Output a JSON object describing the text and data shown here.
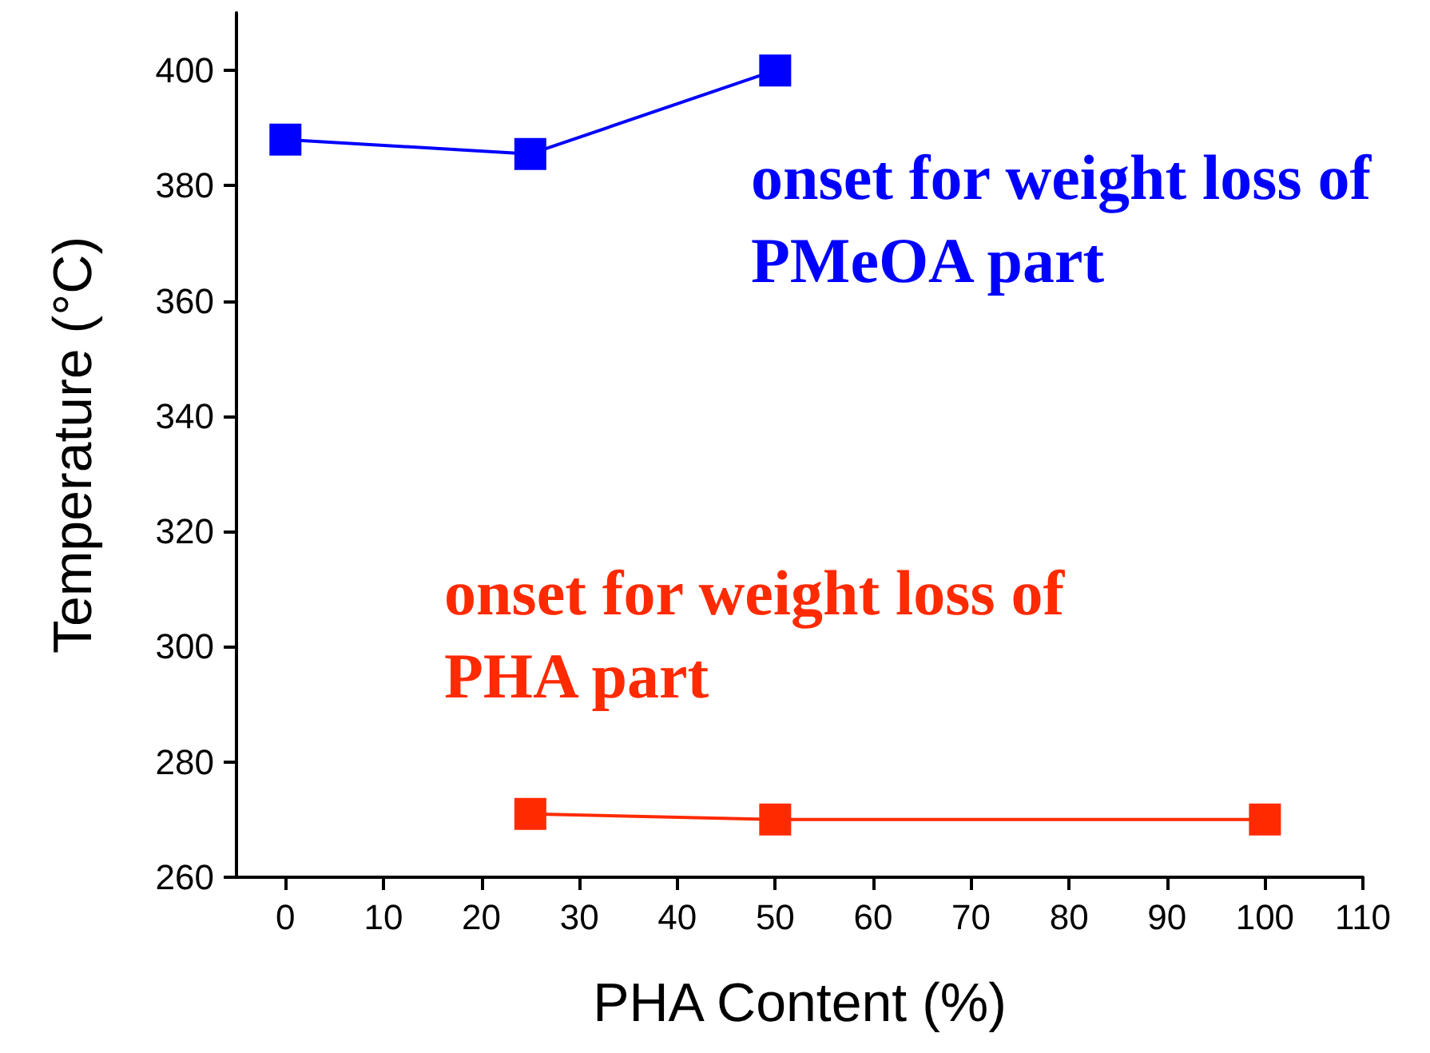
{
  "chart_data": {
    "type": "line",
    "xlabel": "PHA Content (%)",
    "ylabel": "Temperature (°C)",
    "xlim": [
      -5,
      110
    ],
    "xticks": [
      0,
      10,
      20,
      30,
      40,
      50,
      60,
      70,
      80,
      90,
      100,
      110
    ],
    "ylim": [
      260,
      410
    ],
    "yticks": [
      260,
      280,
      300,
      320,
      340,
      360,
      380,
      400
    ],
    "grid": false,
    "marker": "square",
    "line_style": "solid",
    "series": [
      {
        "name": "onset for weight loss of PMeOA part",
        "color": "#0000ff",
        "x": [
          0,
          25,
          50
        ],
        "values": [
          388,
          385.5,
          400
        ]
      },
      {
        "name": "onset for weight loss of PHA part",
        "color": "#ff2a00",
        "x": [
          25,
          50,
          100
        ],
        "values": [
          271,
          270,
          270
        ]
      }
    ]
  }
}
